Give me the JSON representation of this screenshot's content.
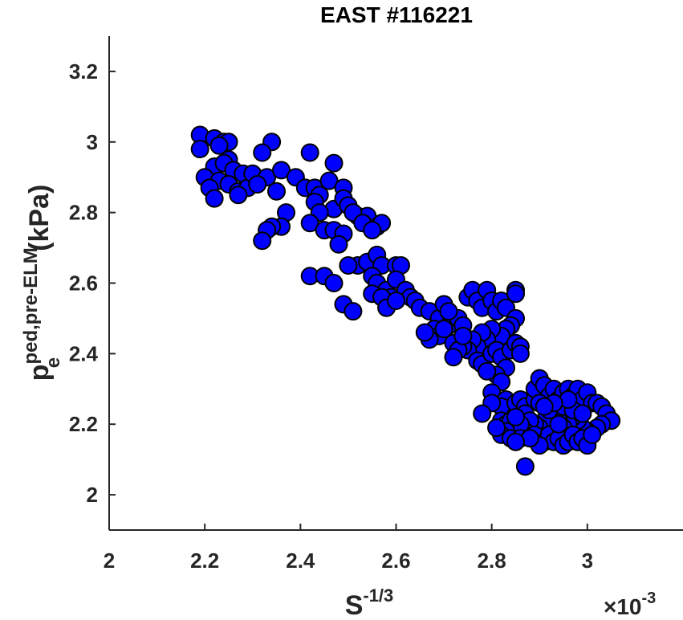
{
  "chart_data": {
    "type": "scatter",
    "title": "EAST #116221",
    "xlabel": {
      "base": "S",
      "sup": "-1/3"
    },
    "ylabel": {
      "base": "p",
      "sup": "ped,pre-ELM",
      "sub": "e",
      "unit": "(kPa)"
    },
    "x_multiplier": {
      "prefix": "×10",
      "sup": "-3"
    },
    "xlim": [
      2.0,
      3.2
    ],
    "ylim": [
      1.9,
      3.3
    ],
    "xticks": [
      2,
      2.2,
      2.4,
      2.6,
      2.8,
      3
    ],
    "xtick_labels": [
      "2",
      "2.2",
      "2.4",
      "2.6",
      "2.8",
      "3"
    ],
    "yticks": [
      2,
      2.2,
      2.4,
      2.6,
      2.8,
      3,
      3.2
    ],
    "ytick_labels": [
      "2",
      "2.2",
      "2.4",
      "2.6",
      "2.8",
      "3",
      "3.2"
    ],
    "grid": false,
    "marker_color": "#0000ff",
    "marker_edge": "#000000",
    "points": [
      [
        2.19,
        3.02
      ],
      [
        2.22,
        3.01
      ],
      [
        2.24,
        3.0
      ],
      [
        2.25,
        3.0
      ],
      [
        2.19,
        2.98
      ],
      [
        2.23,
        2.99
      ],
      [
        2.34,
        3.0
      ],
      [
        2.32,
        2.97
      ],
      [
        2.42,
        2.97
      ],
      [
        2.25,
        2.95
      ],
      [
        2.22,
        2.93
      ],
      [
        2.24,
        2.94
      ],
      [
        2.26,
        2.92
      ],
      [
        2.28,
        2.91
      ],
      [
        2.2,
        2.9
      ],
      [
        2.23,
        2.89
      ],
      [
        2.25,
        2.88
      ],
      [
        2.27,
        2.86
      ],
      [
        2.29,
        2.87
      ],
      [
        2.21,
        2.87
      ],
      [
        2.22,
        2.84
      ],
      [
        2.27,
        2.85
      ],
      [
        2.3,
        2.91
      ],
      [
        2.33,
        2.9
      ],
      [
        2.36,
        2.92
      ],
      [
        2.39,
        2.9
      ],
      [
        2.41,
        2.87
      ],
      [
        2.43,
        2.87
      ],
      [
        2.46,
        2.89
      ],
      [
        2.47,
        2.94
      ],
      [
        2.35,
        2.86
      ],
      [
        2.31,
        2.88
      ],
      [
        2.44,
        2.85
      ],
      [
        2.49,
        2.87
      ],
      [
        2.43,
        2.83
      ],
      [
        2.47,
        2.81
      ],
      [
        2.49,
        2.84
      ],
      [
        2.5,
        2.82
      ],
      [
        2.52,
        2.79
      ],
      [
        2.54,
        2.79
      ],
      [
        2.51,
        2.8
      ],
      [
        2.44,
        2.8
      ],
      [
        2.42,
        2.77
      ],
      [
        2.37,
        2.8
      ],
      [
        2.36,
        2.76
      ],
      [
        2.34,
        2.76
      ],
      [
        2.33,
        2.75
      ],
      [
        2.32,
        2.72
      ],
      [
        2.45,
        2.75
      ],
      [
        2.47,
        2.75
      ],
      [
        2.49,
        2.74
      ],
      [
        2.48,
        2.71
      ],
      [
        2.53,
        2.77
      ],
      [
        2.56,
        2.76
      ],
      [
        2.57,
        2.77
      ],
      [
        2.55,
        2.75
      ],
      [
        2.52,
        2.65
      ],
      [
        2.5,
        2.65
      ],
      [
        2.54,
        2.66
      ],
      [
        2.56,
        2.68
      ],
      [
        2.57,
        2.65
      ],
      [
        2.6,
        2.65
      ],
      [
        2.61,
        2.65
      ],
      [
        2.42,
        2.62
      ],
      [
        2.45,
        2.62
      ],
      [
        2.47,
        2.6
      ],
      [
        2.49,
        2.54
      ],
      [
        2.51,
        2.52
      ],
      [
        2.55,
        2.62
      ],
      [
        2.56,
        2.6
      ],
      [
        2.58,
        2.58
      ],
      [
        2.59,
        2.56
      ],
      [
        2.6,
        2.61
      ],
      [
        2.62,
        2.58
      ],
      [
        2.63,
        2.56
      ],
      [
        2.64,
        2.55
      ],
      [
        2.55,
        2.57
      ],
      [
        2.57,
        2.56
      ],
      [
        2.58,
        2.53
      ],
      [
        2.6,
        2.55
      ],
      [
        2.65,
        2.53
      ],
      [
        2.67,
        2.52
      ],
      [
        2.69,
        2.5
      ],
      [
        2.7,
        2.54
      ],
      [
        2.71,
        2.48
      ],
      [
        2.68,
        2.47
      ],
      [
        2.69,
        2.45
      ],
      [
        2.67,
        2.44
      ],
      [
        2.72,
        2.43
      ],
      [
        2.73,
        2.5
      ],
      [
        2.74,
        2.48
      ],
      [
        2.75,
        2.56
      ],
      [
        2.76,
        2.58
      ],
      [
        2.77,
        2.55
      ],
      [
        2.78,
        2.53
      ],
      [
        2.79,
        2.58
      ],
      [
        2.8,
        2.55
      ],
      [
        2.81,
        2.52
      ],
      [
        2.82,
        2.55
      ],
      [
        2.83,
        2.53
      ],
      [
        2.85,
        2.58
      ],
      [
        2.85,
        2.5
      ],
      [
        2.84,
        2.48
      ],
      [
        2.83,
        2.47
      ],
      [
        2.82,
        2.45
      ],
      [
        2.8,
        2.47
      ],
      [
        2.79,
        2.44
      ],
      [
        2.78,
        2.46
      ],
      [
        2.77,
        2.42
      ],
      [
        2.76,
        2.44
      ],
      [
        2.75,
        2.41
      ],
      [
        2.74,
        2.42
      ],
      [
        2.73,
        2.41
      ],
      [
        2.72,
        2.39
      ],
      [
        2.77,
        2.38
      ],
      [
        2.78,
        2.37
      ],
      [
        2.8,
        2.4
      ],
      [
        2.81,
        2.41
      ],
      [
        2.82,
        2.39
      ],
      [
        2.84,
        2.41
      ],
      [
        2.85,
        2.43
      ],
      [
        2.86,
        2.42
      ],
      [
        2.86,
        2.4
      ],
      [
        2.83,
        2.36
      ],
      [
        2.81,
        2.34
      ],
      [
        2.79,
        2.35
      ],
      [
        2.82,
        2.32
      ],
      [
        2.8,
        2.29
      ],
      [
        2.83,
        2.27
      ],
      [
        2.82,
        2.25
      ],
      [
        2.8,
        2.26
      ],
      [
        2.78,
        2.23
      ],
      [
        2.82,
        2.21
      ],
      [
        2.83,
        2.2
      ],
      [
        2.84,
        2.21
      ],
      [
        2.85,
        2.26
      ],
      [
        2.86,
        2.27
      ],
      [
        2.87,
        2.25
      ],
      [
        2.87,
        2.23
      ],
      [
        2.89,
        2.27
      ],
      [
        2.89,
        2.3
      ],
      [
        2.9,
        2.33
      ],
      [
        2.91,
        2.31
      ],
      [
        2.92,
        2.28
      ],
      [
        2.93,
        2.3
      ],
      [
        2.94,
        2.27
      ],
      [
        2.95,
        2.29
      ],
      [
        2.96,
        2.3
      ],
      [
        2.97,
        2.28
      ],
      [
        2.98,
        2.3
      ],
      [
        2.99,
        2.27
      ],
      [
        3.0,
        2.29
      ],
      [
        3.01,
        2.26
      ],
      [
        3.02,
        2.26
      ],
      [
        3.03,
        2.25
      ],
      [
        3.04,
        2.23
      ],
      [
        3.05,
        2.21
      ],
      [
        3.03,
        2.2
      ],
      [
        3.02,
        2.19
      ],
      [
        3.0,
        2.18
      ],
      [
        2.99,
        2.19
      ],
      [
        2.98,
        2.21
      ],
      [
        2.97,
        2.22
      ],
      [
        2.96,
        2.2
      ],
      [
        2.95,
        2.19
      ],
      [
        2.94,
        2.21
      ],
      [
        2.93,
        2.23
      ],
      [
        2.92,
        2.22
      ],
      [
        2.91,
        2.21
      ],
      [
        2.9,
        2.19
      ],
      [
        2.89,
        2.2
      ],
      [
        2.88,
        2.21
      ],
      [
        2.87,
        2.18
      ],
      [
        2.86,
        2.2
      ],
      [
        2.85,
        2.22
      ],
      [
        2.83,
        2.18
      ],
      [
        2.82,
        2.17
      ],
      [
        2.81,
        2.19
      ],
      [
        2.84,
        2.16
      ],
      [
        2.86,
        2.16
      ],
      [
        2.89,
        2.17
      ],
      [
        2.91,
        2.15
      ],
      [
        2.92,
        2.17
      ],
      [
        2.93,
        2.15
      ],
      [
        2.94,
        2.16
      ],
      [
        2.95,
        2.14
      ],
      [
        2.96,
        2.15
      ],
      [
        2.97,
        2.17
      ],
      [
        2.98,
        2.15
      ],
      [
        2.99,
        2.16
      ],
      [
        3.0,
        2.14
      ],
      [
        3.01,
        2.17
      ],
      [
        2.9,
        2.14
      ],
      [
        2.88,
        2.16
      ],
      [
        2.85,
        2.15
      ],
      [
        2.87,
        2.08
      ],
      [
        2.92,
        2.24
      ],
      [
        2.95,
        2.25
      ],
      [
        2.97,
        2.24
      ],
      [
        2.99,
        2.23
      ],
      [
        2.9,
        2.26
      ],
      [
        2.94,
        2.2
      ],
      [
        2.96,
        2.27
      ],
      [
        2.93,
        2.26
      ],
      [
        2.91,
        2.25
      ],
      [
        2.85,
        2.57
      ],
      [
        2.74,
        2.45
      ],
      [
        2.7,
        2.47
      ],
      [
        2.66,
        2.46
      ],
      [
        2.71,
        2.52
      ]
    ]
  }
}
